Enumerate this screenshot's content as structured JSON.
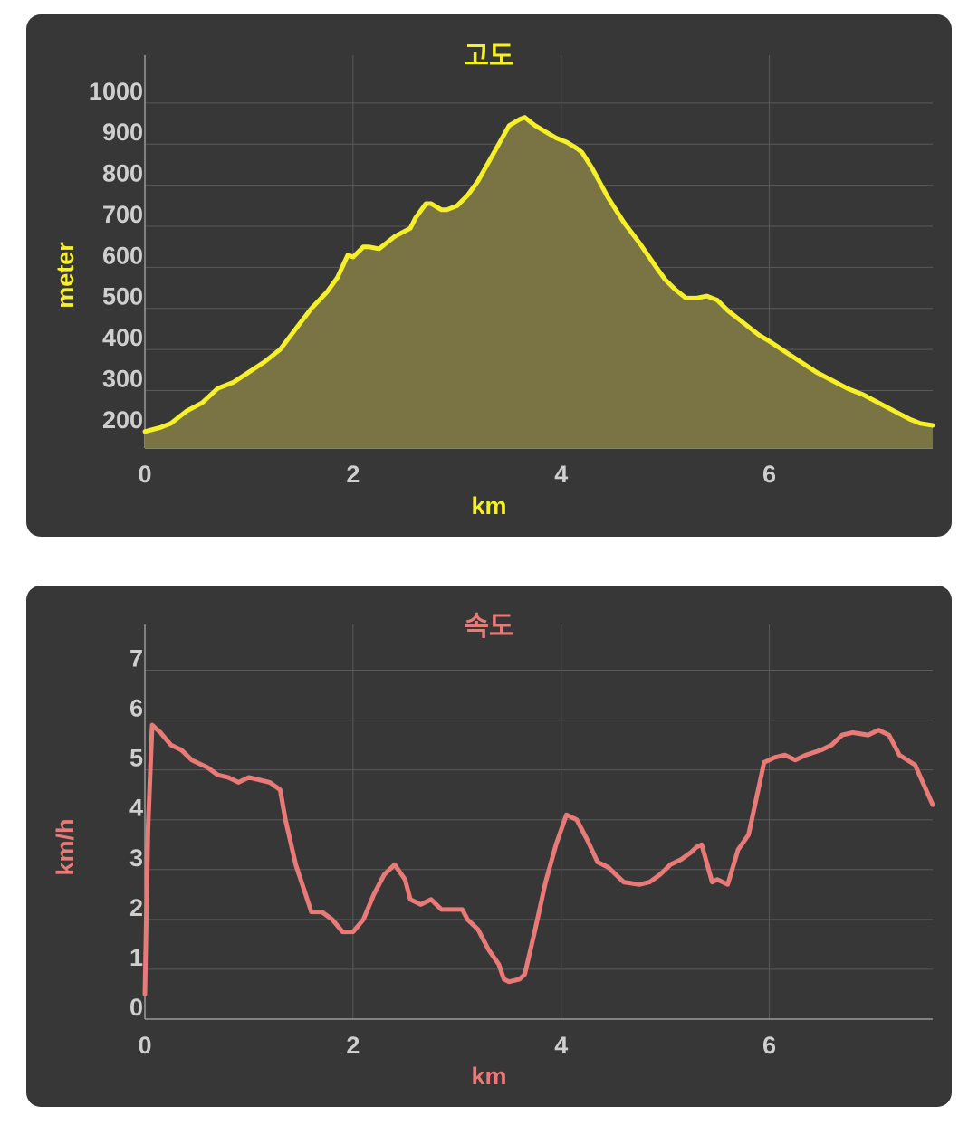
{
  "colors": {
    "background": "#373737",
    "grid": "#5a5a5a",
    "tick_text": "#cfcfcf",
    "elevation": "#f5f02a",
    "elevation_fill": "#7a7444",
    "speed": "#e87a78"
  },
  "chart_data": [
    {
      "type": "area",
      "title": "고도",
      "xlabel": "km",
      "ylabel": "meter",
      "xlim": [
        0,
        7.57
      ],
      "ylim": [
        160,
        1090
      ],
      "xticks": [
        "0",
        "2",
        "4",
        "6"
      ],
      "yticks": [
        "200",
        "300",
        "400",
        "500",
        "600",
        "700",
        "800",
        "900",
        "1000"
      ],
      "grid": true,
      "series": [
        {
          "x": [
            0,
            0.15,
            0.25,
            0.4,
            0.55,
            0.7,
            0.85,
            1.0,
            1.15,
            1.3,
            1.45,
            1.6,
            1.75,
            1.85,
            1.95,
            2.0,
            2.1,
            2.15,
            2.25,
            2.3,
            2.4,
            2.55,
            2.6,
            2.7,
            2.75,
            2.85,
            2.9,
            3.0,
            3.1,
            3.2,
            3.3,
            3.4,
            3.5,
            3.6,
            3.65,
            3.7,
            3.75,
            3.85,
            3.95,
            4.05,
            4.15,
            4.2,
            4.3,
            4.45,
            4.6,
            4.75,
            4.9,
            5.0,
            5.1,
            5.2,
            5.3,
            5.4,
            5.45,
            5.5,
            5.6,
            5.75,
            5.9,
            6.0,
            6.15,
            6.3,
            6.45,
            6.6,
            6.75,
            6.9,
            7.05,
            7.2,
            7.35,
            7.45,
            7.57
          ],
          "y": [
            200,
            210,
            220,
            250,
            270,
            305,
            320,
            345,
            370,
            400,
            450,
            500,
            540,
            575,
            630,
            625,
            650,
            650,
            645,
            655,
            675,
            695,
            720,
            755,
            755,
            740,
            740,
            750,
            775,
            810,
            855,
            900,
            945,
            960,
            965,
            955,
            945,
            930,
            915,
            905,
            890,
            880,
            840,
            770,
            710,
            660,
            605,
            570,
            545,
            525,
            525,
            530,
            525,
            520,
            495,
            465,
            435,
            420,
            395,
            370,
            345,
            325,
            305,
            290,
            270,
            250,
            230,
            220,
            215
          ]
        }
      ]
    },
    {
      "type": "line",
      "title": "속도",
      "xlabel": "km",
      "ylabel": "km/h",
      "xlim": [
        0,
        7.57
      ],
      "ylim": [
        0,
        7.7
      ],
      "xticks": [
        "0",
        "2",
        "4",
        "6"
      ],
      "yticks": [
        "0",
        "1",
        "2",
        "3",
        "4",
        "5",
        "6",
        "7"
      ],
      "grid": true,
      "series": [
        {
          "x": [
            0,
            0.03,
            0.07,
            0.15,
            0.25,
            0.35,
            0.45,
            0.55,
            0.6,
            0.7,
            0.8,
            0.9,
            1.0,
            1.1,
            1.2,
            1.3,
            1.35,
            1.45,
            1.6,
            1.7,
            1.8,
            1.9,
            2.0,
            2.1,
            2.2,
            2.3,
            2.4,
            2.5,
            2.55,
            2.65,
            2.75,
            2.85,
            2.95,
            3.05,
            3.1,
            3.2,
            3.3,
            3.4,
            3.45,
            3.5,
            3.6,
            3.65,
            3.75,
            3.85,
            3.95,
            4.05,
            4.15,
            4.25,
            4.35,
            4.45,
            4.6,
            4.75,
            4.85,
            4.95,
            5.05,
            5.15,
            5.25,
            5.3,
            5.35,
            5.45,
            5.5,
            5.6,
            5.7,
            5.8,
            5.95,
            6.05,
            6.15,
            6.25,
            6.35,
            6.5,
            6.6,
            6.7,
            6.8,
            6.95,
            7.05,
            7.15,
            7.25,
            7.4,
            7.57
          ],
          "y": [
            0.5,
            3.8,
            5.9,
            5.75,
            5.5,
            5.4,
            5.2,
            5.1,
            5.05,
            4.9,
            4.85,
            4.75,
            4.85,
            4.8,
            4.75,
            4.6,
            4.0,
            3.1,
            2.15,
            2.15,
            2.0,
            1.75,
            1.75,
            2.0,
            2.5,
            2.9,
            3.1,
            2.8,
            2.4,
            2.3,
            2.4,
            2.2,
            2.2,
            2.2,
            2.0,
            1.8,
            1.4,
            1.1,
            0.8,
            0.75,
            0.8,
            0.9,
            1.8,
            2.75,
            3.5,
            4.1,
            4.0,
            3.6,
            3.15,
            3.05,
            2.75,
            2.7,
            2.75,
            2.9,
            3.1,
            3.2,
            3.35,
            3.45,
            3.5,
            2.75,
            2.8,
            2.7,
            3.4,
            3.7,
            5.15,
            5.25,
            5.3,
            5.2,
            5.3,
            5.4,
            5.5,
            5.7,
            5.75,
            5.7,
            5.8,
            5.7,
            5.3,
            5.1,
            4.3
          ]
        }
      ]
    }
  ]
}
